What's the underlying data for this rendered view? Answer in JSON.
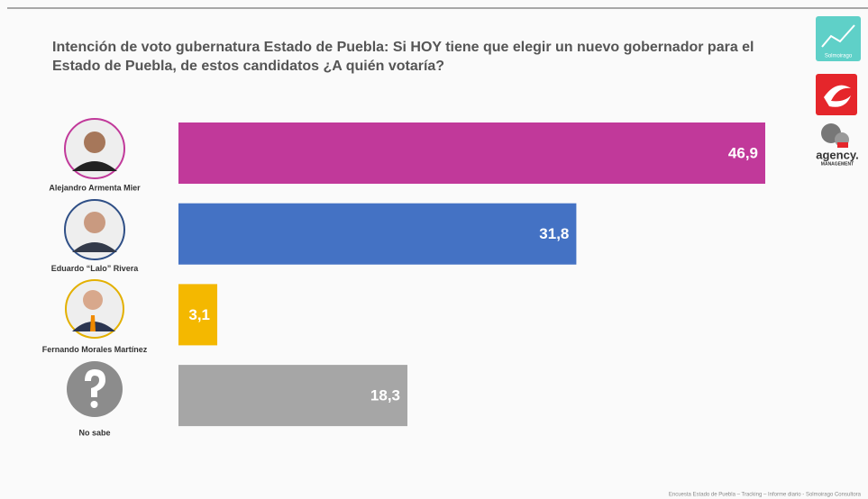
{
  "chart_data": {
    "type": "bar",
    "orientation": "horizontal",
    "title": "Intención de voto gubernatura Estado de Puebla: Si HOY tiene que elegir un nuevo gobernador para el Estado de Puebla, de estos candidatos ¿A quién votaría?",
    "categories": [
      "Alejandro Armenta Mier",
      "Eduardo “Lalo” Rivera",
      "Fernando Morales Martínez",
      "No sabe"
    ],
    "values": [
      46.9,
      31.8,
      3.1,
      18.3
    ],
    "value_labels": [
      "46,9",
      "31,8",
      "3,1",
      "18,3"
    ],
    "colors": [
      "#c1399a",
      "#4472c4",
      "#f4b800",
      "#a6a6a6"
    ],
    "source": "Encuesta Estado de Puebla – Tracking – Informe diario - Solmoirago Consultora"
  },
  "logos": [
    "Solmoirago",
    "agency.",
    "MANAGEMENT"
  ]
}
